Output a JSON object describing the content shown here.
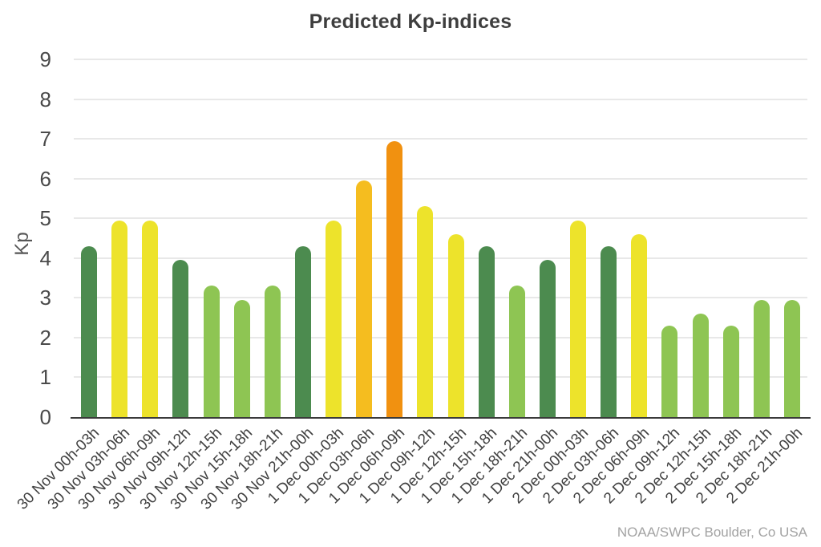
{
  "title": "Predicted Kp-indices",
  "attribution": "NOAA/SWPC Boulder, Co USA",
  "chart_data": {
    "type": "bar",
    "title": "Predicted Kp-indices",
    "xlabel": "",
    "ylabel": "Kp",
    "ylim": [
      0,
      9
    ],
    "yticks": [
      0,
      1,
      2,
      3,
      4,
      5,
      6,
      7,
      8,
      9
    ],
    "grid": true,
    "legend": false,
    "annotation": "NOAA/SWPC Boulder, Co USA",
    "categories": [
      "30 Nov 00h-03h",
      "30 Nov 03h-06h",
      "30 Nov 06h-09h",
      "30 Nov 09h-12h",
      "30 Nov 12h-15h",
      "30 Nov 15h-18h",
      "30 Nov 18h-21h",
      "30 Nov 21h-00h",
      "1 Dec 00h-03h",
      "1 Dec 03h-06h",
      "1 Dec 06h-09h",
      "1 Dec 09h-12h",
      "1 Dec 12h-15h",
      "1 Dec 15h-18h",
      "1 Dec 18h-21h",
      "1 Dec 21h-00h",
      "2 Dec 00h-03h",
      "2 Dec 03h-06h",
      "2 Dec 06h-09h",
      "2 Dec 09h-12h",
      "2 Dec 12h-15h",
      "2 Dec 15h-18h",
      "2 Dec 18h-21h",
      "2 Dec 21h-00h"
    ],
    "values": [
      4.3,
      4.95,
      4.95,
      3.95,
      3.3,
      2.95,
      3.3,
      4.3,
      4.95,
      5.95,
      6.95,
      5.3,
      4.6,
      4.3,
      3.3,
      3.95,
      4.95,
      4.3,
      4.6,
      2.3,
      2.6,
      2.3,
      2.95,
      2.95
    ],
    "bar_color_keys": [
      "dark_green",
      "yellow",
      "yellow",
      "dark_green",
      "light_green",
      "light_green",
      "light_green",
      "dark_green",
      "yellow",
      "amber",
      "orange",
      "yellow",
      "yellow",
      "dark_green",
      "light_green",
      "dark_green",
      "yellow",
      "dark_green",
      "yellow",
      "light_green",
      "light_green",
      "light_green",
      "light_green",
      "light_green"
    ],
    "palette": {
      "light_green": "#8EC553",
      "dark_green": "#4C8B4F",
      "yellow": "#EDE32B",
      "amber": "#F5BD1F",
      "orange": "#F19110"
    }
  },
  "colors": {
    "background": "#FFFFFF",
    "title_text": "#3E3E3E",
    "y_axis_title": "#565656",
    "tick_text": "#4A4A4A",
    "x_tick_text": "#414141",
    "gridline": "#E8E8E8",
    "axis_line": "#3A3A3A",
    "attribution_text": "#A3A3A3"
  }
}
